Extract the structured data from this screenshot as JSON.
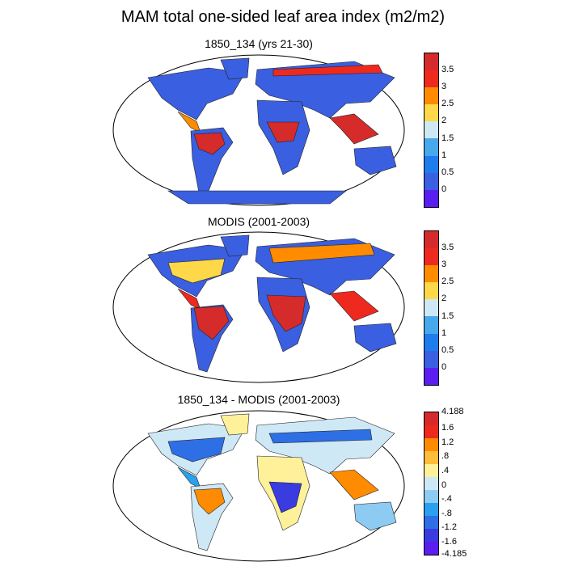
{
  "figure": {
    "title": "MAM total one-sided leaf area index (m2/m2)"
  },
  "panels": [
    {
      "title": "1850_134 (yrs 21-30)",
      "colorbar": {
        "labels": [
          "3.5",
          "3",
          "2.5",
          "2",
          "1.5",
          "1",
          "0.5",
          "0"
        ],
        "colors": [
          "#d62b2b",
          "#ee2a1f",
          "#ff8c00",
          "#ffd84a",
          "#cfe8f6",
          "#48a8ec",
          "#1f7cec",
          "#3a5fe0",
          "#5a1ef0"
        ]
      }
    },
    {
      "title": "MODIS (2001-2003)",
      "colorbar": {
        "labels": [
          "3.5",
          "3",
          "2.5",
          "2",
          "1.5",
          "1",
          "0.5",
          "0"
        ],
        "colors": [
          "#d62b2b",
          "#ee2a1f",
          "#ff8c00",
          "#ffd84a",
          "#cfe8f6",
          "#48a8ec",
          "#1f7cec",
          "#3a5fe0",
          "#5a1ef0"
        ]
      }
    },
    {
      "title": "1850_134 - MODIS (2001-2003)",
      "colorbar": {
        "labels": [
          "4.188",
          "1.6",
          "1.2",
          ".8",
          ".4",
          "0",
          "-.4",
          "-.8",
          "-1.2",
          "-1.6",
          "-4.185"
        ],
        "colors": [
          "#d62b2b",
          "#ee2a1f",
          "#ff8c00",
          "#ffbe3a",
          "#fff19a",
          "#cfe8f6",
          "#8ecbf2",
          "#2aa0ef",
          "#2e6fe6",
          "#3a3ce0",
          "#5a1ef0"
        ]
      }
    }
  ]
}
